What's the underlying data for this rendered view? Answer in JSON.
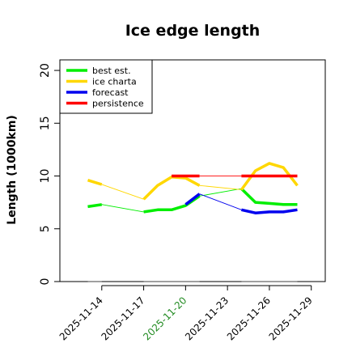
{
  "chart_data": {
    "type": "line",
    "title": "Ice edge length",
    "xlabel": "",
    "ylabel": "Length (1000km)",
    "xlim": [
      "2025-11-11",
      "2025-11-30"
    ],
    "ylim": [
      0,
      21
    ],
    "yticks": [
      0,
      5,
      10,
      15,
      20
    ],
    "xticks": [
      "2025-11-14",
      "2025-11-17",
      "2025-11-20",
      "2025-11-23",
      "2025-11-26",
      "2025-11-29"
    ],
    "highlight_tick": "2025-11-20",
    "highlight_color": "#228b22",
    "legend_position": "top-left",
    "grid": false,
    "series": [
      {
        "name": "best est.",
        "color": "#00ee00",
        "thin_connector": true,
        "segments": [
          [
            [
              "2025-11-13",
              7.1
            ],
            [
              "2025-11-14",
              7.3
            ]
          ],
          [
            [
              "2025-11-17",
              6.6
            ],
            [
              "2025-11-18",
              6.8
            ],
            [
              "2025-11-19",
              6.8
            ],
            [
              "2025-11-20",
              7.2
            ],
            [
              "2025-11-21",
              8.1
            ]
          ],
          [
            [
              "2025-11-24",
              8.8
            ],
            [
              "2025-11-25",
              7.5
            ],
            [
              "2025-11-26",
              7.4
            ],
            [
              "2025-11-27",
              7.3
            ],
            [
              "2025-11-28",
              7.3
            ]
          ]
        ]
      },
      {
        "name": "ice charta",
        "color": "#ffd700",
        "thin_connector": true,
        "segments": [
          [
            [
              "2025-11-13",
              9.6
            ],
            [
              "2025-11-14",
              9.2
            ]
          ],
          [
            [
              "2025-11-17",
              7.8
            ],
            [
              "2025-11-18",
              9.1
            ],
            [
              "2025-11-19",
              9.9
            ],
            [
              "2025-11-20",
              9.8
            ],
            [
              "2025-11-21",
              9.1
            ]
          ],
          [
            [
              "2025-11-24",
              8.7
            ],
            [
              "2025-11-25",
              10.5
            ],
            [
              "2025-11-26",
              11.2
            ],
            [
              "2025-11-27",
              10.8
            ],
            [
              "2025-11-28",
              9.1
            ]
          ]
        ]
      },
      {
        "name": "forecast",
        "color": "#0000ee",
        "thin_connector": true,
        "segments": [
          [
            [
              "2025-11-20",
              7.3
            ],
            [
              "2025-11-21",
              8.3
            ]
          ],
          [
            [
              "2025-11-24",
              6.8
            ],
            [
              "2025-11-25",
              6.5
            ],
            [
              "2025-11-26",
              6.6
            ],
            [
              "2025-11-27",
              6.6
            ],
            [
              "2025-11-28",
              6.8
            ]
          ]
        ]
      },
      {
        "name": "persistence",
        "color": "#ff0000",
        "thin_connector": true,
        "segments": [
          [
            [
              "2025-11-19",
              10.0
            ],
            [
              "2025-11-21",
              10.0
            ]
          ],
          [
            [
              "2025-11-24",
              10.0
            ],
            [
              "2025-11-28",
              10.0
            ]
          ]
        ]
      }
    ],
    "gray_baseline": {
      "value": 0,
      "color": "#808080",
      "segments": [
        [
          "2025-11-13",
          "2025-11-14"
        ],
        [
          "2025-11-17",
          "2025-11-21"
        ],
        [
          "2025-11-24",
          "2025-11-28"
        ]
      ]
    }
  }
}
